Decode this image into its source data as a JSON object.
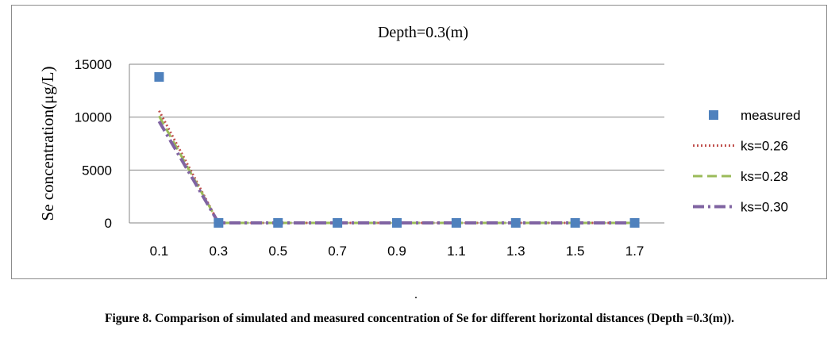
{
  "chart_data": {
    "type": "line",
    "title": "Depth=0.3(m)",
    "ylabel": "Se concentration(μg/L)",
    "xlabel": "",
    "categories": [
      "0.1",
      "0.3",
      "0.5",
      "0.7",
      "0.9",
      "1.1",
      "1.3",
      "1.5",
      "1.7"
    ],
    "ylim": [
      0,
      15000
    ],
    "yticks": [
      "0",
      "5000",
      "10000",
      "15000"
    ],
    "grid": true,
    "legend_position": "right",
    "series": [
      {
        "name": "measured",
        "style": "markers-square",
        "color": "#4f81bd",
        "values": [
          13800,
          0,
          0,
          0,
          0,
          0,
          0,
          0,
          0
        ]
      },
      {
        "name": "ks=0.26",
        "style": "dotted",
        "color": "#c0504d",
        "values": [
          10600,
          0,
          0,
          0,
          0,
          0,
          0,
          0,
          0
        ]
      },
      {
        "name": "ks=0.28",
        "style": "dashed",
        "color": "#9bbb59",
        "values": [
          10100,
          0,
          0,
          0,
          0,
          0,
          0,
          0,
          0
        ]
      },
      {
        "name": "ks=0.30",
        "style": "dash-dot",
        "color": "#8064a2",
        "values": [
          9600,
          0,
          0,
          0,
          0,
          0,
          0,
          0,
          0
        ]
      }
    ]
  },
  "dot_mark": ".",
  "caption": "Figure 8. Comparison of simulated and measured concentration of Se for different horizontal distances (Depth =0.3(m))."
}
